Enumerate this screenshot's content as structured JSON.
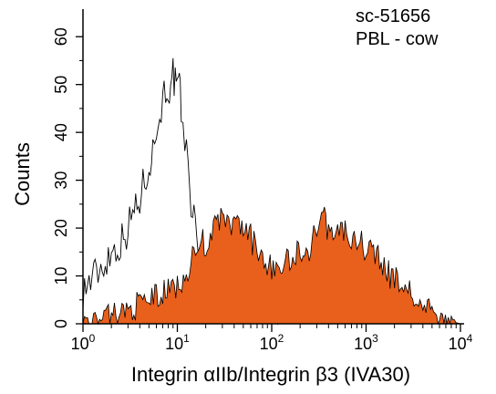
{
  "chart_data": {
    "type": "area",
    "annotation_lines": [
      "sc-51656",
      "PBL - cow"
    ],
    "ylabel": "Counts",
    "xlabel": "Integrin αIIb/Integrin β3 (IVA30)",
    "x_scale": "log",
    "xlim": [
      1,
      10000
    ],
    "ylim": [
      0,
      65
    ],
    "x_tick_values": [
      1,
      10,
      100,
      1000,
      10000
    ],
    "x_tick_labels": [
      {
        "base": "10",
        "exp": "0"
      },
      {
        "base": "10",
        "exp": "1"
      },
      {
        "base": "10",
        "exp": "2"
      },
      {
        "base": "10",
        "exp": "3"
      },
      {
        "base": "10",
        "exp": "4"
      }
    ],
    "y_ticks": [
      0,
      10,
      20,
      30,
      40,
      50,
      60
    ],
    "colors": {
      "filled": "#e8601c",
      "outline": "#000000"
    },
    "series": [
      {
        "style": "outline",
        "x": [
          1,
          1.3,
          1.6,
          2,
          2.5,
          3,
          3.5,
          4,
          4.5,
          5,
          5.5,
          6,
          6.5,
          7,
          7.5,
          8,
          8.5,
          9,
          9.5,
          10,
          10.5,
          11,
          12,
          13,
          14,
          15,
          16,
          18,
          20,
          23,
          26,
          30,
          35,
          40,
          45,
          50,
          60,
          70,
          80,
          100,
          200,
          500,
          1000,
          3000,
          8000
        ],
        "values": [
          7,
          10,
          12,
          15,
          17,
          20,
          24,
          26,
          30,
          34,
          36,
          40,
          44,
          47,
          49,
          50,
          47,
          52,
          50,
          48,
          50,
          45,
          38,
          33,
          26,
          22,
          17,
          14,
          12,
          12,
          17,
          12,
          16,
          14,
          15,
          12,
          9,
          5,
          3,
          1.5,
          0.5,
          0,
          0,
          0,
          0
        ]
      },
      {
        "style": "filled",
        "x": [
          1,
          1.5,
          2,
          3,
          4,
          5,
          6,
          7,
          8,
          10,
          12,
          15,
          18,
          20,
          25,
          30,
          35,
          40,
          45,
          50,
          60,
          70,
          80,
          100,
          120,
          150,
          200,
          250,
          300,
          350,
          400,
          500,
          600,
          700,
          800,
          1000,
          1200,
          1500,
          2000,
          2500,
          3000,
          4000,
          5000,
          6000,
          8000,
          10000
        ],
        "values": [
          0.5,
          1,
          2,
          3,
          4,
          5,
          6,
          6,
          7,
          8,
          10,
          14,
          17,
          17,
          20,
          22,
          21,
          20,
          21,
          20,
          18,
          15,
          14,
          12,
          12,
          13,
          15,
          16,
          20,
          22,
          20,
          19,
          20,
          17,
          17,
          16,
          15,
          12,
          9,
          8,
          6,
          4,
          2,
          1,
          0.5,
          0
        ]
      }
    ]
  }
}
